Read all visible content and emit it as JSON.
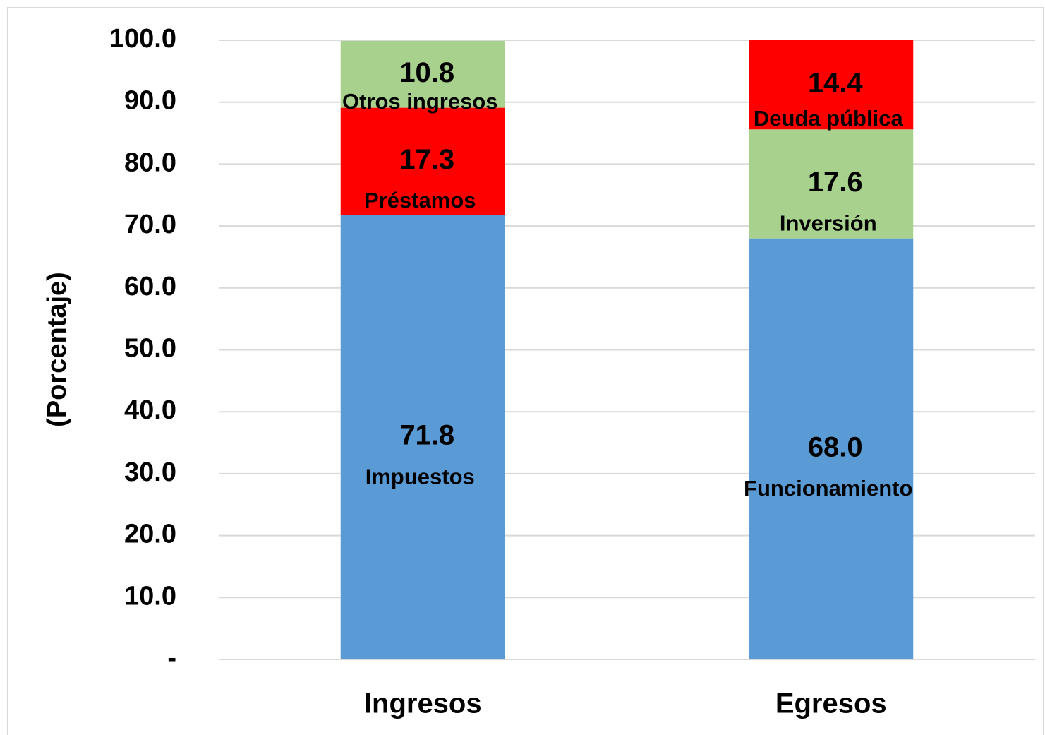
{
  "chart_data": {
    "type": "stacked_bar",
    "y_label": "(Porcentaje)",
    "categories": [
      "Ingresos",
      "Egresos"
    ],
    "stacks": [
      {
        "segments": [
          {
            "name": "Impuestos",
            "color": "#5b9bd5",
            "value": 71.8
          },
          {
            "name": "Préstamos",
            "color": "#ff0000",
            "value": 17.3
          },
          {
            "name": "Otros ingresos",
            "color": "#a9d18e",
            "value": 10.8
          }
        ]
      },
      {
        "segments": [
          {
            "name": "Funcionamiento",
            "color": "#5b9bd5",
            "value": 68.0,
            "value_label": "68.0"
          },
          {
            "name": "Inversión",
            "color": "#a9d18e",
            "value": 17.6
          },
          {
            "name": "Deuda pública",
            "color": "#ff0000",
            "value": 14.4
          }
        ]
      }
    ],
    "ylim": [
      0,
      100
    ],
    "yticks": [
      {
        "value": 0,
        "label": "-"
      },
      {
        "value": 10,
        "label": "10.0"
      },
      {
        "value": 20,
        "label": "20.0"
      },
      {
        "value": 30,
        "label": "30.0"
      },
      {
        "value": 40,
        "label": "40.0"
      },
      {
        "value": 50,
        "label": "50.0"
      },
      {
        "value": 60,
        "label": "60.0"
      },
      {
        "value": 70,
        "label": "70.0"
      },
      {
        "value": 80,
        "label": "80.0"
      },
      {
        "value": 90,
        "label": "90.0"
      },
      {
        "value": 100,
        "label": "100.0"
      }
    ],
    "grid": true
  }
}
